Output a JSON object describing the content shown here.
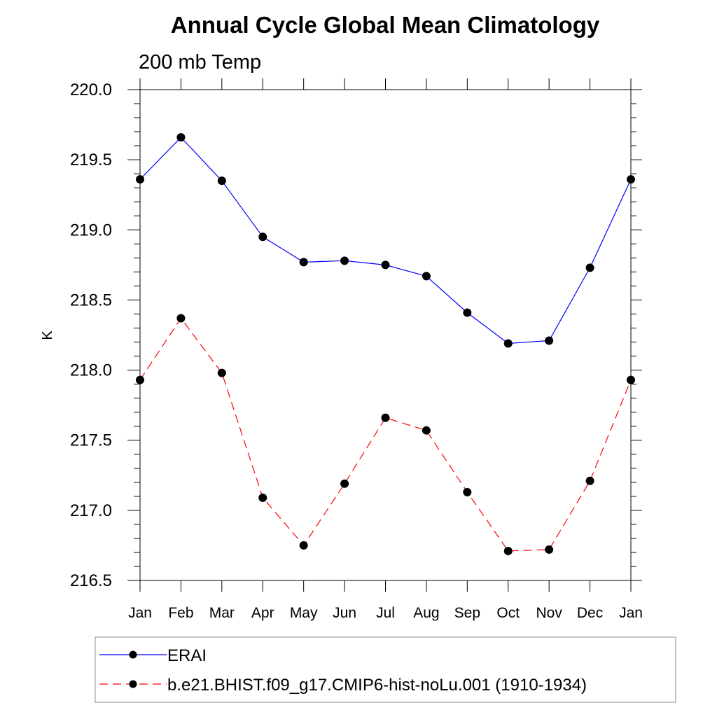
{
  "chart_data": {
    "type": "line",
    "title": "Annual Cycle Global Mean Climatology",
    "subtitle": "200 mb Temp",
    "ylabel": "K",
    "xlabel": "",
    "categories": [
      "Jan",
      "Feb",
      "Mar",
      "Apr",
      "May",
      "Jun",
      "Jul",
      "Aug",
      "Sep",
      "Oct",
      "Nov",
      "Dec",
      "Jan"
    ],
    "ylim": [
      216.5,
      220.0
    ],
    "yticks": [
      "216.5",
      "217.0",
      "217.5",
      "218.0",
      "218.5",
      "219.0",
      "219.5",
      "220.0"
    ],
    "yminor_step": 0.1,
    "legend_position": "bottom",
    "series": [
      {
        "name": "ERAI",
        "color": "#0000ff",
        "dash": "solid",
        "values": [
          219.36,
          219.66,
          219.35,
          218.95,
          218.77,
          218.78,
          218.75,
          218.67,
          218.41,
          218.19,
          218.21,
          218.73,
          219.36
        ]
      },
      {
        "name": "b.e21.BHIST.f09_g17.CMIP6-hist-noLu.001 (1910-1934)",
        "color": "#ff0000",
        "dash": "dashed",
        "values": [
          217.93,
          218.37,
          217.98,
          217.09,
          216.75,
          217.19,
          217.66,
          217.57,
          217.13,
          216.71,
          216.72,
          217.21,
          217.93
        ]
      }
    ]
  }
}
